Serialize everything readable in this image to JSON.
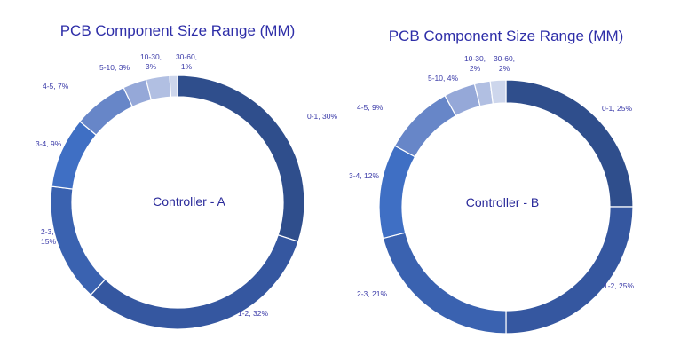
{
  "chart_data": [
    {
      "type": "pie",
      "title": "PCB Component Size Range (MM)",
      "center_label": "Controller -  A",
      "categories": [
        "0-1",
        "1-2",
        "2-3",
        "3-4",
        "4-5",
        "5-10",
        "10-30",
        "30-60"
      ],
      "values": [
        30,
        32,
        15,
        9,
        7,
        3,
        3,
        1
      ],
      "data_labels": [
        "0-1, 30%",
        "1-2, 32%",
        "2-3,\n15%",
        "3-4, 9%",
        "4-5, 7%",
        "5-10, 3%",
        "10-30,\n3%",
        "30-60,\n1%"
      ],
      "colors": [
        "#2f4e8c",
        "#3557a0",
        "#3a62b0",
        "#3f6fc4",
        "#6786c8",
        "#95a8d8",
        "#b1bfe2",
        "#cdd6ec"
      ]
    },
    {
      "type": "pie",
      "title": "PCB Component Size Range (MM)",
      "center_label": "Controller -  B",
      "categories": [
        "0-1",
        "1-2",
        "2-3",
        "3-4",
        "4-5",
        "5-10",
        "10-30",
        "30-60"
      ],
      "values": [
        25,
        25,
        21,
        12,
        9,
        4,
        2,
        2
      ],
      "data_labels": [
        "0-1, 25%",
        "1-2, 25%",
        "2-3, 21%",
        "3-4, 12%",
        "4-5, 9%",
        "5-10, 4%",
        "10-30,\n2%",
        "30-60,\n2%"
      ],
      "colors": [
        "#2f4e8c",
        "#3557a0",
        "#3a62b0",
        "#3f6fc4",
        "#6786c8",
        "#95a8d8",
        "#b1bfe2",
        "#cdd6ec"
      ]
    }
  ]
}
